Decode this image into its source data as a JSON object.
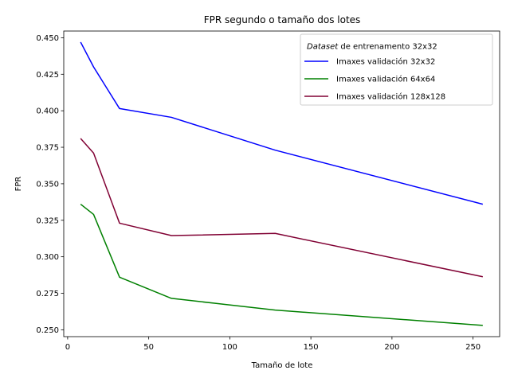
{
  "chart_data": {
    "type": "line",
    "title": "FPR segundo o tamaño dos lotes",
    "xlabel": "Tamaño de lote",
    "ylabel": "FPR",
    "x": [
      8,
      16,
      32,
      64,
      128,
      256
    ],
    "xlim": [
      -2.4,
      266.4
    ],
    "ylim": [
      0.2453,
      0.4546
    ],
    "xticks": [
      0,
      50,
      100,
      150,
      200,
      250
    ],
    "yticks": [
      0.25,
      0.275,
      0.3,
      0.325,
      0.35,
      0.375,
      0.4,
      0.425,
      0.45
    ],
    "legend": {
      "title_italic": "Dataset",
      "title_rest": " de entrenamento 32x32",
      "placement": "top-right"
    },
    "series": [
      {
        "name": "Imaxes validación 32x32",
        "color": "#0000ff",
        "values": [
          0.447,
          0.43,
          0.4015,
          0.3955,
          0.373,
          0.336
        ]
      },
      {
        "name": "Imaxes validación 64x64",
        "color": "#008000",
        "values": [
          0.336,
          0.329,
          0.286,
          0.2715,
          0.2635,
          0.253
        ]
      },
      {
        "name": "Imaxes validación 128x128",
        "color": "#800033",
        "values": [
          0.381,
          0.371,
          0.323,
          0.3145,
          0.316,
          0.2863
        ]
      }
    ]
  }
}
